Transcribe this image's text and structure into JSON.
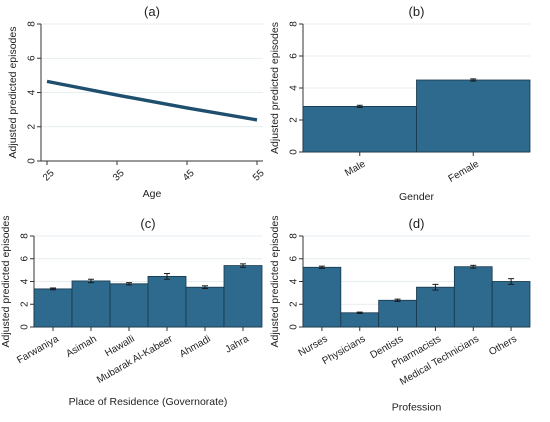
{
  "chart_data": [
    {
      "type": "line",
      "title": "(a)",
      "xlabel": "Age",
      "ylabel": "Adjusted predicted episodes",
      "ylim": [
        0,
        8
      ],
      "yticks": [
        0,
        2,
        4,
        6,
        8
      ],
      "xlim": [
        25,
        55
      ],
      "xticks": [
        25,
        35,
        45,
        55
      ],
      "grid": true,
      "bar_color": "#2e6a8e",
      "x": [
        25,
        35,
        45,
        55
      ],
      "values": [
        4.65,
        3.85,
        3.1,
        2.4
      ]
    },
    {
      "type": "bar",
      "title": "(b)",
      "xlabel": "Gender",
      "ylabel": "Adjusted predicted episodes",
      "ylim": [
        0,
        8
      ],
      "yticks": [
        0,
        2,
        4,
        6,
        8
      ],
      "grid": true,
      "bar_color": "#2e6a8e",
      "categories": [
        "Male",
        "Female"
      ],
      "values": [
        2.85,
        4.5
      ],
      "errors": [
        0.07,
        0.07
      ]
    },
    {
      "type": "bar",
      "title": "(c)",
      "xlabel": "Place of Residence (Governorate)",
      "ylabel": "Adjusted predicted episodes",
      "ylim": [
        0,
        8
      ],
      "yticks": [
        0,
        2,
        4,
        6,
        8
      ],
      "grid": true,
      "bar_color": "#2e6a8e",
      "categories": [
        "Farwaniya",
        "Asimah",
        "Hawalli",
        "Mubarak Al-Kabeer",
        "Ahmadi",
        "Jahra"
      ],
      "values": [
        3.35,
        4.05,
        3.8,
        4.45,
        3.5,
        5.4
      ],
      "errors": [
        0.08,
        0.15,
        0.1,
        0.25,
        0.12,
        0.15
      ]
    },
    {
      "type": "bar",
      "title": "(d)",
      "xlabel": "Profession",
      "ylabel": "Adjusted predicted episodes",
      "ylim": [
        0,
        8
      ],
      "yticks": [
        0,
        2,
        4,
        6,
        8
      ],
      "grid": true,
      "bar_color": "#2e6a8e",
      "categories": [
        "Nurses",
        "Physicians",
        "Dentists",
        "Pharmacists",
        "Medical Technicians",
        "Others"
      ],
      "values": [
        5.25,
        1.25,
        2.35,
        3.5,
        5.3,
        4.0
      ],
      "errors": [
        0.1,
        0.06,
        0.1,
        0.25,
        0.12,
        0.25
      ]
    }
  ]
}
